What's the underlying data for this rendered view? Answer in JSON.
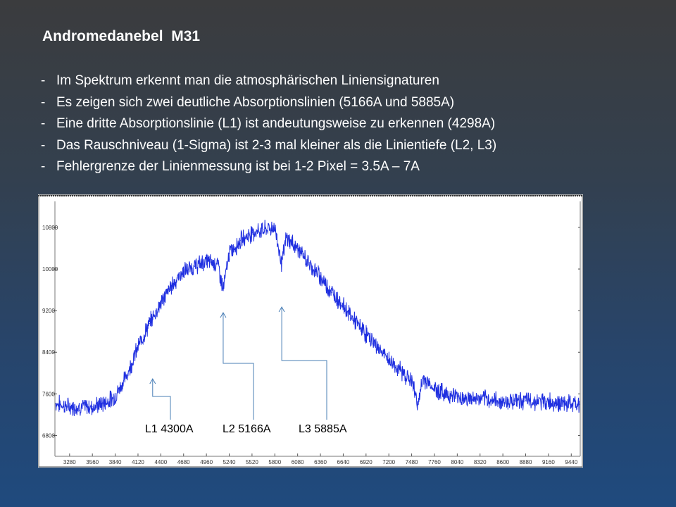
{
  "slide": {
    "title": "Andromedanebel  M31",
    "bullets": [
      "Im Spektrum erkennt man die atmosphärischen Liniensignaturen",
      "Es zeigen sich zwei deutliche Absorptionslinien (5166A und 5885A)",
      "Eine dritte Absorptionslinie (L1) ist andeutungsweise zu erkennen (4298A)",
      "Das Rauschniveau (1-Sigma) ist 2-3 mal kleiner als die Linientiefe (L2, L3)",
      "Fehlergrenze der Linienmessung ist bei 1-2 Pixel = 3.5A – 7A"
    ],
    "bullet_marker": "-"
  },
  "chart_data": {
    "type": "line",
    "title": "",
    "xlabel": "",
    "ylabel": "",
    "xlim": [
      3100,
      9550
    ],
    "ylim": [
      6400,
      11300
    ],
    "x_ticks": [
      3280,
      3560,
      3840,
      4120,
      4400,
      4680,
      4960,
      5240,
      5520,
      5800,
      6080,
      6360,
      6640,
      6920,
      7200,
      7480,
      7760,
      8040,
      8320,
      8600,
      8880,
      9160,
      9440
    ],
    "y_ticks": [
      6800,
      7600,
      8400,
      9200,
      10000,
      10800
    ],
    "grid": false,
    "line_color": "#1f2fe0",
    "series": [
      {
        "x": [
          3110,
          3280,
          3560,
          3700,
          3840,
          3980,
          4120,
          4260,
          4400,
          4540,
          4680,
          4820,
          4960,
          5100,
          5166,
          5240,
          5380,
          5520,
          5660,
          5800,
          5885,
          5940,
          6080,
          6220,
          6360,
          6500,
          6640,
          6780,
          6920,
          7060,
          7200,
          7340,
          7480,
          7560,
          7620,
          7760,
          7900,
          8040,
          8180,
          8320,
          8460,
          8600,
          8740,
          8880,
          9020,
          9160,
          9300,
          9440,
          9540
        ],
        "y": [
          7420,
          7350,
          7350,
          7420,
          7550,
          7950,
          8500,
          8950,
          9350,
          9700,
          9950,
          10050,
          10150,
          10100,
          9600,
          10300,
          10550,
          10700,
          10750,
          10800,
          10100,
          10600,
          10400,
          10100,
          9850,
          9550,
          9300,
          9000,
          8750,
          8500,
          8250,
          8050,
          7850,
          7400,
          7900,
          7700,
          7600,
          7550,
          7500,
          7500,
          7480,
          7450,
          7480,
          7470,
          7450,
          7450,
          7420,
          7400,
          7400
        ]
      }
    ],
    "annotations": [
      {
        "label": "L1 4300A",
        "arrow_x": 4300
      },
      {
        "label": "L2 5166A",
        "arrow_x": 5166
      },
      {
        "label": "L3 5885A",
        "arrow_x": 5885
      }
    ],
    "annotation_color": "#4a7fb6"
  }
}
